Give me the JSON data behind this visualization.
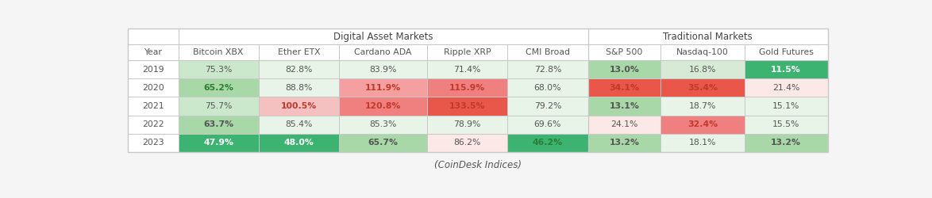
{
  "title": "(CoinDesk Indices)",
  "group1_header": "Digital Asset Markets",
  "group2_header": "Traditional Markets",
  "col_headers": [
    "Year",
    "Bitcoin XBX",
    "Ether ETX",
    "Cardano ADA",
    "Ripple XRP",
    "CMI Broad",
    "S&P 500",
    "Nasdaq-100",
    "Gold Futures"
  ],
  "rows": [
    [
      "2019",
      "75.3%",
      "82.8%",
      "83.9%",
      "71.4%",
      "72.8%",
      "13.0%",
      "16.8%",
      "11.5%"
    ],
    [
      "2020",
      "65.2%",
      "88.8%",
      "111.9%",
      "115.9%",
      "68.0%",
      "34.1%",
      "35.4%",
      "21.4%"
    ],
    [
      "2021",
      "75.7%",
      "100.5%",
      "120.8%",
      "133.5%",
      "79.2%",
      "13.1%",
      "18.7%",
      "15.1%"
    ],
    [
      "2022",
      "63.7%",
      "85.4%",
      "85.3%",
      "78.9%",
      "69.6%",
      "24.1%",
      "32.4%",
      "15.5%"
    ],
    [
      "2023",
      "47.9%",
      "48.0%",
      "65.7%",
      "86.2%",
      "46.2%",
      "13.2%",
      "18.1%",
      "13.2%"
    ]
  ],
  "cell_colors": [
    [
      "#ffffff",
      "#cce8cc",
      "#e8f4e8",
      "#e8f4e8",
      "#e8f4e8",
      "#e8f4e8",
      "#a8d8a8",
      "#d6ead6",
      "#3cb371"
    ],
    [
      "#ffffff",
      "#a8d8a8",
      "#e8f4e8",
      "#f4a0a0",
      "#f08080",
      "#e8f4e8",
      "#e8574a",
      "#e8574a",
      "#fde8e8"
    ],
    [
      "#ffffff",
      "#cce8cc",
      "#f4c0c0",
      "#f08080",
      "#e8574a",
      "#e8f4e8",
      "#a8d8a8",
      "#e8f4e8",
      "#e8f4e8"
    ],
    [
      "#ffffff",
      "#a8d8a8",
      "#e8f4e8",
      "#e8f4e8",
      "#e8f4e8",
      "#e8f4e8",
      "#fde8e8",
      "#f08080",
      "#e8f4e8"
    ],
    [
      "#ffffff",
      "#3cb371",
      "#3cb371",
      "#a8d8a8",
      "#fde8e8",
      "#3cb371",
      "#a8d8a8",
      "#e8f4e8",
      "#a8d8a8"
    ]
  ],
  "text_colors": [
    [
      "#555555",
      "#555555",
      "#555555",
      "#555555",
      "#555555",
      "#555555",
      "#555555",
      "#555555",
      "#ffffff"
    ],
    [
      "#555555",
      "#2e7d32",
      "#555555",
      "#c0392b",
      "#c0392b",
      "#555555",
      "#c0392b",
      "#c0392b",
      "#555555"
    ],
    [
      "#555555",
      "#555555",
      "#c0392b",
      "#c0392b",
      "#c0392b",
      "#555555",
      "#555555",
      "#555555",
      "#555555"
    ],
    [
      "#555555",
      "#555555",
      "#555555",
      "#555555",
      "#555555",
      "#555555",
      "#555555",
      "#c0392b",
      "#555555"
    ],
    [
      "#555555",
      "#ffffff",
      "#ffffff",
      "#555555",
      "#555555",
      "#2e7d32",
      "#555555",
      "#555555",
      "#555555"
    ]
  ],
  "bold_threshold_bg": [
    "#a8d8a8",
    "#3cb371",
    "#f4a0a0",
    "#f08080",
    "#e8574a",
    "#f4c0c0"
  ],
  "border_color": "#c8c8c8",
  "header_bg": "#ffffff",
  "font_size_data": 7.8,
  "font_size_header": 7.8,
  "font_size_group": 8.5,
  "font_size_caption": 8.5,
  "background_color": "#f5f5f5"
}
